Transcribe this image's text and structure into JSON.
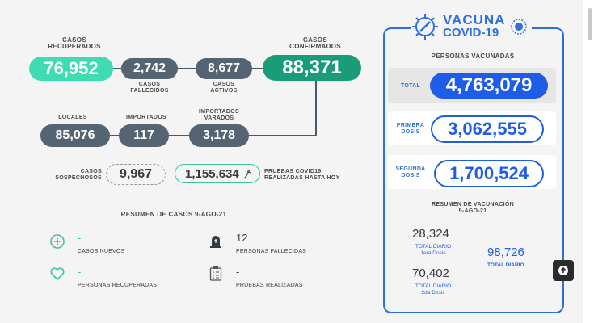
{
  "stats": {
    "recuperados": {
      "label_1": "CASOS",
      "label_2": "RECUPERADOS",
      "value": "76,952"
    },
    "fallecidos": {
      "value": "2,742",
      "label_1": "CASOS",
      "label_2": "FALLECIDOS"
    },
    "activos": {
      "value": "8,677",
      "label_1": "CASOS",
      "label_2": "ACTIVOS"
    },
    "confirmados": {
      "label_1": "CASOS",
      "label_2": "CONFIRMADOS",
      "value": "88,371"
    },
    "locales": {
      "label": "LOCALES",
      "value": "85,076"
    },
    "importados": {
      "label": "IMPORTADOS",
      "value": "117"
    },
    "varados": {
      "label_1": "IMPORTADOS",
      "label_2": "VARADOS",
      "value": "3,178"
    },
    "sospechosos": {
      "label_1": "CASOS",
      "label_2": "SOSPECHOSOS",
      "value": "9,967"
    },
    "pruebas": {
      "value": "1,155,634",
      "label_1": "PRUEBAS COVID19",
      "label_2": "REALIZADAS HASTA HOY"
    }
  },
  "resumen": {
    "title": "RESUMEN DE CASOS 9-AGO-21",
    "nuevos": {
      "value": "-",
      "label": "CASOS NUEVOS"
    },
    "fallecidas": {
      "value": "12",
      "label": "PERSONAS FALLECIDAS"
    },
    "recuperadas": {
      "value": "-",
      "label": "PERSONAS RECUPERADAS"
    },
    "pruebas": {
      "value": "-",
      "label": "PRUEBAS REALIZADAS"
    }
  },
  "vacuna": {
    "logo_1": "VACUNA",
    "logo_2": "COVID-19",
    "personas_title": "PERSONAS VACUNADAS",
    "total_label": "TOTAL",
    "total_value": "4,763,079",
    "primera_1": "PRIMERA",
    "primera_2": "DOSIS",
    "primera_value": "3,062,555",
    "segunda_1": "SEGUNDA",
    "segunda_2": "DOSIS",
    "segunda_value": "1,700,524",
    "resumen_1": "RESUMEN DE VACUNACIÓN",
    "resumen_2": "9-AGO-21",
    "diario_1_value": "28,324",
    "diario_1_l1": "TOTAL DIARIO",
    "diario_1_l2": "1era Dosis",
    "diario_2_value": "70,402",
    "diario_2_l1": "TOTAL DIARIO",
    "diario_2_l2": "2da Dosis",
    "total_diario_value": "98,726",
    "total_diario_label": "TOTAL DIARIO"
  },
  "colors": {
    "teal": "#3ddcb2",
    "green": "#1a9c7b",
    "gray": "#556472",
    "blue": "#1e5de8"
  }
}
